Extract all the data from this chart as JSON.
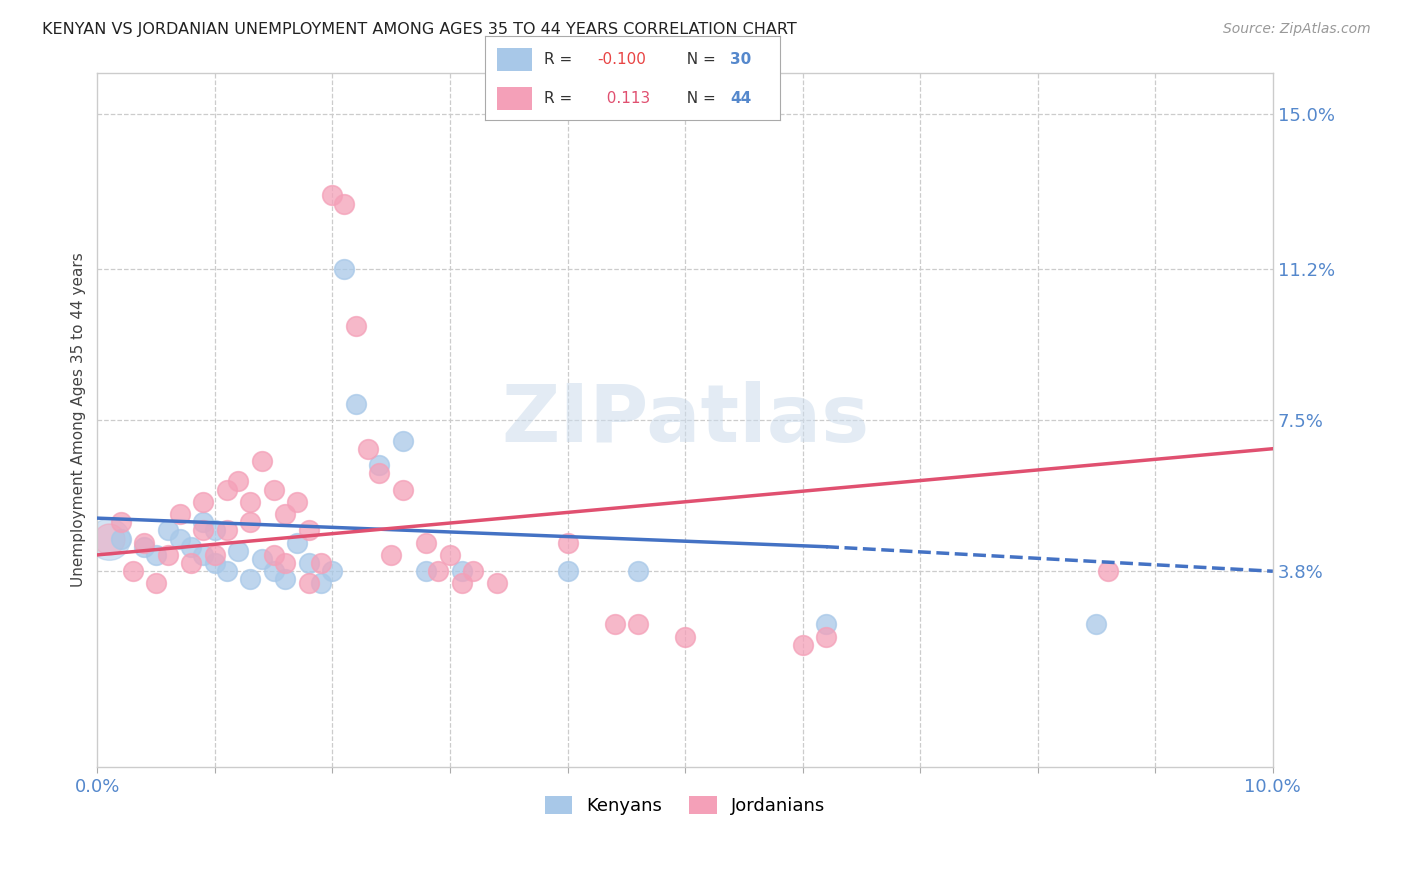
{
  "title": "KENYAN VS JORDANIAN UNEMPLOYMENT AMONG AGES 35 TO 44 YEARS CORRELATION CHART",
  "source": "Source: ZipAtlas.com",
  "ylabel": "Unemployment Among Ages 35 to 44 years",
  "xlim": [
    0.0,
    0.1
  ],
  "ylim": [
    -0.01,
    0.16
  ],
  "xticks": [
    0.0,
    0.01,
    0.02,
    0.03,
    0.04,
    0.05,
    0.06,
    0.07,
    0.08,
    0.09,
    0.1
  ],
  "xticklabels": [
    "0.0%",
    "",
    "",
    "",
    "",
    "",
    "",
    "",
    "",
    "",
    "10.0%"
  ],
  "ytick_positions": [
    0.038,
    0.075,
    0.112,
    0.15
  ],
  "ytick_labels": [
    "3.8%",
    "7.5%",
    "11.2%",
    "15.0%"
  ],
  "blue_color": "#a8c8e8",
  "pink_color": "#f4a0b8",
  "blue_line_color": "#4472c4",
  "pink_line_color": "#e05070",
  "watermark": "ZIPatlas",
  "kenya_scatter": [
    [
      0.002,
      0.046
    ],
    [
      0.004,
      0.044
    ],
    [
      0.005,
      0.042
    ],
    [
      0.006,
      0.048
    ],
    [
      0.007,
      0.046
    ],
    [
      0.008,
      0.044
    ],
    [
      0.009,
      0.05
    ],
    [
      0.009,
      0.042
    ],
    [
      0.01,
      0.048
    ],
    [
      0.01,
      0.04
    ],
    [
      0.011,
      0.038
    ],
    [
      0.012,
      0.043
    ],
    [
      0.013,
      0.036
    ],
    [
      0.014,
      0.041
    ],
    [
      0.015,
      0.038
    ],
    [
      0.016,
      0.036
    ],
    [
      0.017,
      0.045
    ],
    [
      0.018,
      0.04
    ],
    [
      0.019,
      0.035
    ],
    [
      0.02,
      0.038
    ],
    [
      0.021,
      0.112
    ],
    [
      0.022,
      0.079
    ],
    [
      0.024,
      0.064
    ],
    [
      0.026,
      0.07
    ],
    [
      0.028,
      0.038
    ],
    [
      0.031,
      0.038
    ],
    [
      0.04,
      0.038
    ],
    [
      0.046,
      0.038
    ],
    [
      0.062,
      0.025
    ],
    [
      0.085,
      0.025
    ]
  ],
  "jordan_scatter": [
    [
      0.002,
      0.05
    ],
    [
      0.003,
      0.038
    ],
    [
      0.004,
      0.045
    ],
    [
      0.005,
      0.035
    ],
    [
      0.006,
      0.042
    ],
    [
      0.007,
      0.052
    ],
    [
      0.008,
      0.04
    ],
    [
      0.009,
      0.055
    ],
    [
      0.009,
      0.048
    ],
    [
      0.01,
      0.042
    ],
    [
      0.011,
      0.058
    ],
    [
      0.011,
      0.048
    ],
    [
      0.012,
      0.06
    ],
    [
      0.013,
      0.055
    ],
    [
      0.013,
      0.05
    ],
    [
      0.014,
      0.065
    ],
    [
      0.015,
      0.058
    ],
    [
      0.015,
      0.042
    ],
    [
      0.016,
      0.052
    ],
    [
      0.016,
      0.04
    ],
    [
      0.017,
      0.055
    ],
    [
      0.018,
      0.048
    ],
    [
      0.018,
      0.035
    ],
    [
      0.019,
      0.04
    ],
    [
      0.02,
      0.13
    ],
    [
      0.021,
      0.128
    ],
    [
      0.022,
      0.098
    ],
    [
      0.023,
      0.068
    ],
    [
      0.024,
      0.062
    ],
    [
      0.025,
      0.042
    ],
    [
      0.026,
      0.058
    ],
    [
      0.028,
      0.045
    ],
    [
      0.029,
      0.038
    ],
    [
      0.03,
      0.042
    ],
    [
      0.031,
      0.035
    ],
    [
      0.032,
      0.038
    ],
    [
      0.034,
      0.035
    ],
    [
      0.04,
      0.045
    ],
    [
      0.044,
      0.025
    ],
    [
      0.046,
      0.025
    ],
    [
      0.05,
      0.022
    ],
    [
      0.06,
      0.02
    ],
    [
      0.062,
      0.022
    ],
    [
      0.086,
      0.038
    ]
  ],
  "kenya_line_x": [
    0.0,
    0.062,
    0.1
  ],
  "kenya_line_y_start": 0.051,
  "kenya_line_y_mid": 0.044,
  "kenya_line_y_end": 0.038,
  "jordan_line_x": [
    0.0,
    0.1
  ],
  "jordan_line_y_start": 0.042,
  "jordan_line_y_end": 0.068
}
